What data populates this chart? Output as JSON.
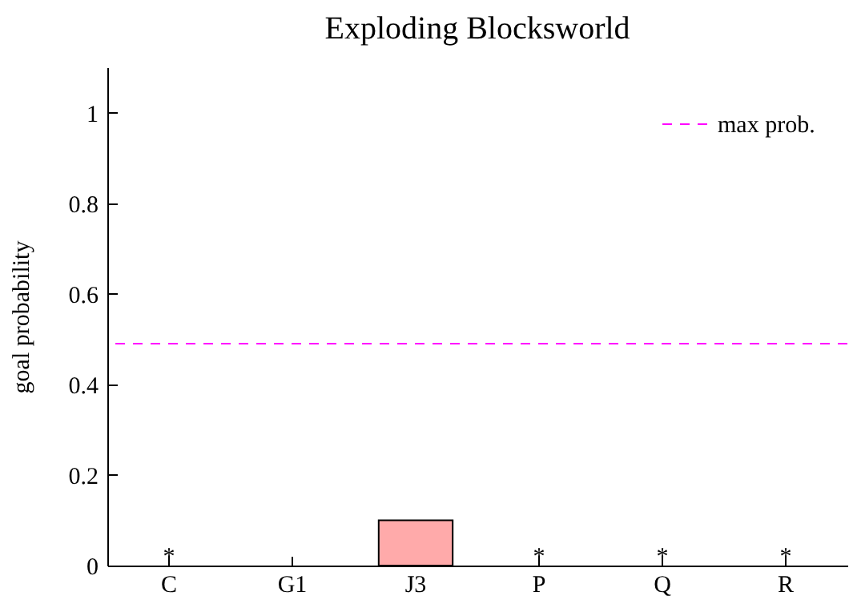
{
  "chart_data": {
    "type": "bar",
    "title": "Exploding Blocksworld",
    "ylabel": "goal probability",
    "categories": [
      "C",
      "G1",
      "J3",
      "P",
      "Q",
      "R"
    ],
    "values": [
      0,
      0,
      0.1,
      0,
      0,
      0
    ],
    "value_labels": [
      "*",
      null,
      null,
      "*",
      "*",
      "*"
    ],
    "color": "#ffaaaa",
    "ylim": [
      0,
      1.1
    ],
    "yticks": [
      0,
      0.2,
      0.4,
      0.6,
      0.8,
      1
    ],
    "ref_lines": [
      {
        "axis": "y",
        "value": 0.49,
        "label": "max prob.",
        "color": "#ff00ff",
        "line_style": "dashed"
      }
    ],
    "legend": "top right"
  }
}
